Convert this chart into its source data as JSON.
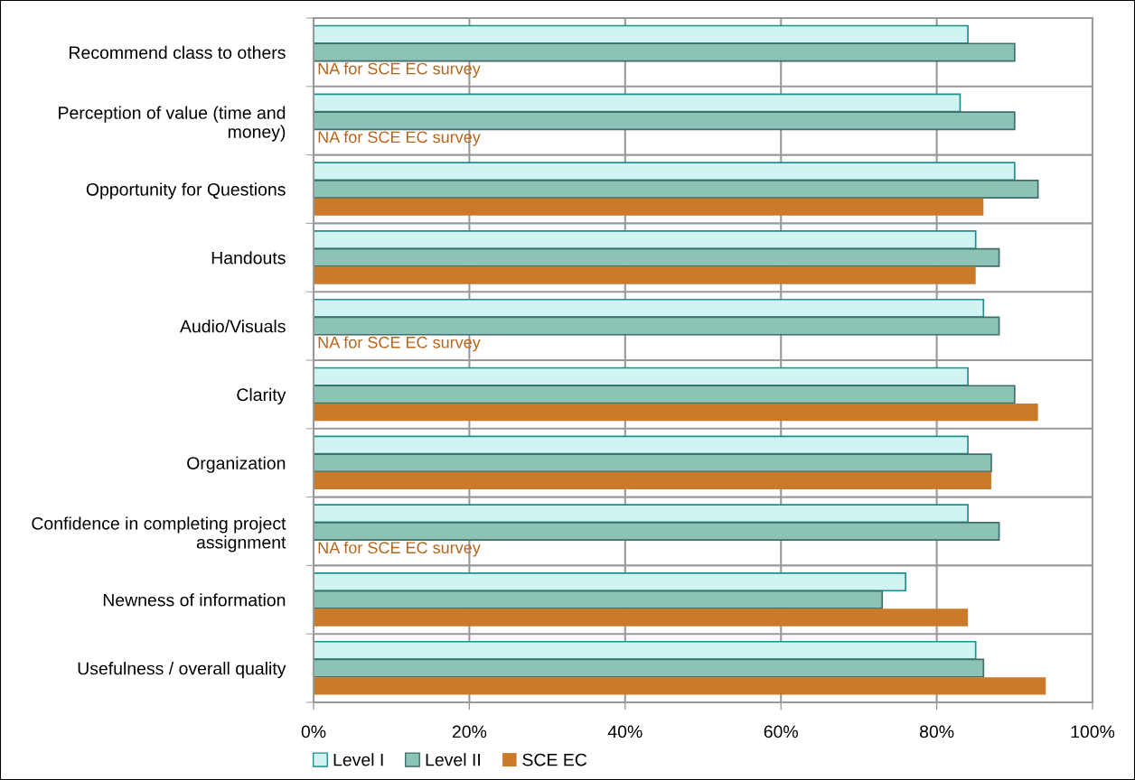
{
  "chart_data": {
    "type": "bar",
    "orientation": "horizontal",
    "categories": [
      "Recommend class to others",
      "Perception of value (time and money)",
      "Opportunity for Questions",
      "Handouts",
      "Audio/Visuals",
      "Clarity",
      "Organization",
      "Confidence in completing project assignment",
      "Newness of information",
      "Usefulness / overall quality"
    ],
    "series": [
      {
        "name": "Level I",
        "color": "#cff4f2",
        "values": [
          84,
          83,
          90,
          85,
          86,
          84,
          84,
          84,
          76,
          85
        ]
      },
      {
        "name": "Level II",
        "color": "#8dc2b7",
        "values": [
          90,
          90,
          93,
          88,
          88,
          90,
          87,
          88,
          73,
          86
        ]
      },
      {
        "name": "SCE EC",
        "color": "#cb7a29",
        "values": [
          null,
          null,
          86,
          85,
          null,
          93,
          87,
          null,
          84,
          94
        ]
      }
    ],
    "xlim": [
      0,
      100
    ],
    "xticks": [
      {
        "value": 0,
        "label": "0%"
      },
      {
        "value": 20,
        "label": "20%"
      },
      {
        "value": 40,
        "label": "40%"
      },
      {
        "value": 60,
        "label": "60%"
      },
      {
        "value": 80,
        "label": "80%"
      },
      {
        "value": 100,
        "label": "100%"
      }
    ],
    "annotations": [
      "NA for SCE EC survey",
      "NA for SCE EC survey",
      "NA for SCE EC survey",
      "NA for SCE EC survey"
    ],
    "grid": "x",
    "legend": "bottom left"
  }
}
